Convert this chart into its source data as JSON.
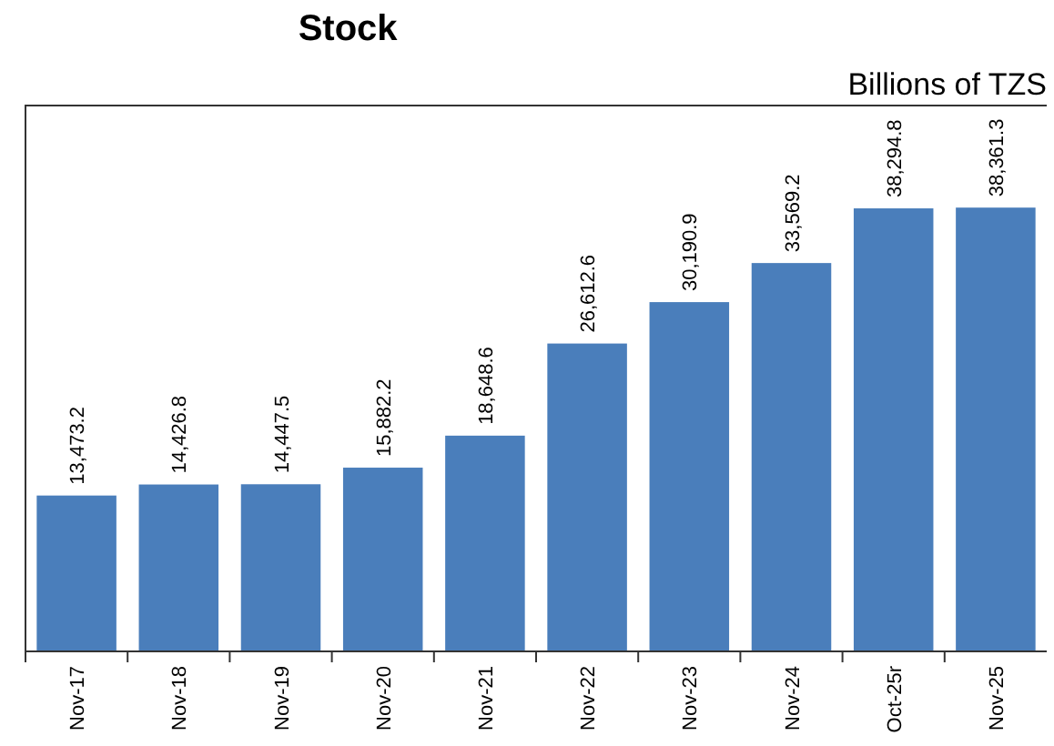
{
  "chart_data": {
    "type": "bar",
    "title": "Stock",
    "ylabel": "Billions of TZS",
    "categories": [
      "Nov-17",
      "Nov-18",
      "Nov-19",
      "Nov-20",
      "Nov-21",
      "Nov-22",
      "Nov-23",
      "Nov-24",
      "Oct-25r",
      "Nov-25"
    ],
    "values": [
      13473.2,
      14426.8,
      14447.5,
      15882.2,
      18648.6,
      26612.6,
      30190.9,
      33569.2,
      38294.8,
      38361.3
    ],
    "value_labels": [
      "13,473.2",
      "14,426.8",
      "14,447.5",
      "15,882.2",
      "18,648.6",
      "26,612.6",
      "30,190.9",
      "33,569.2",
      "38,294.8",
      "38,361.3"
    ],
    "color": "#4a7ebb"
  }
}
